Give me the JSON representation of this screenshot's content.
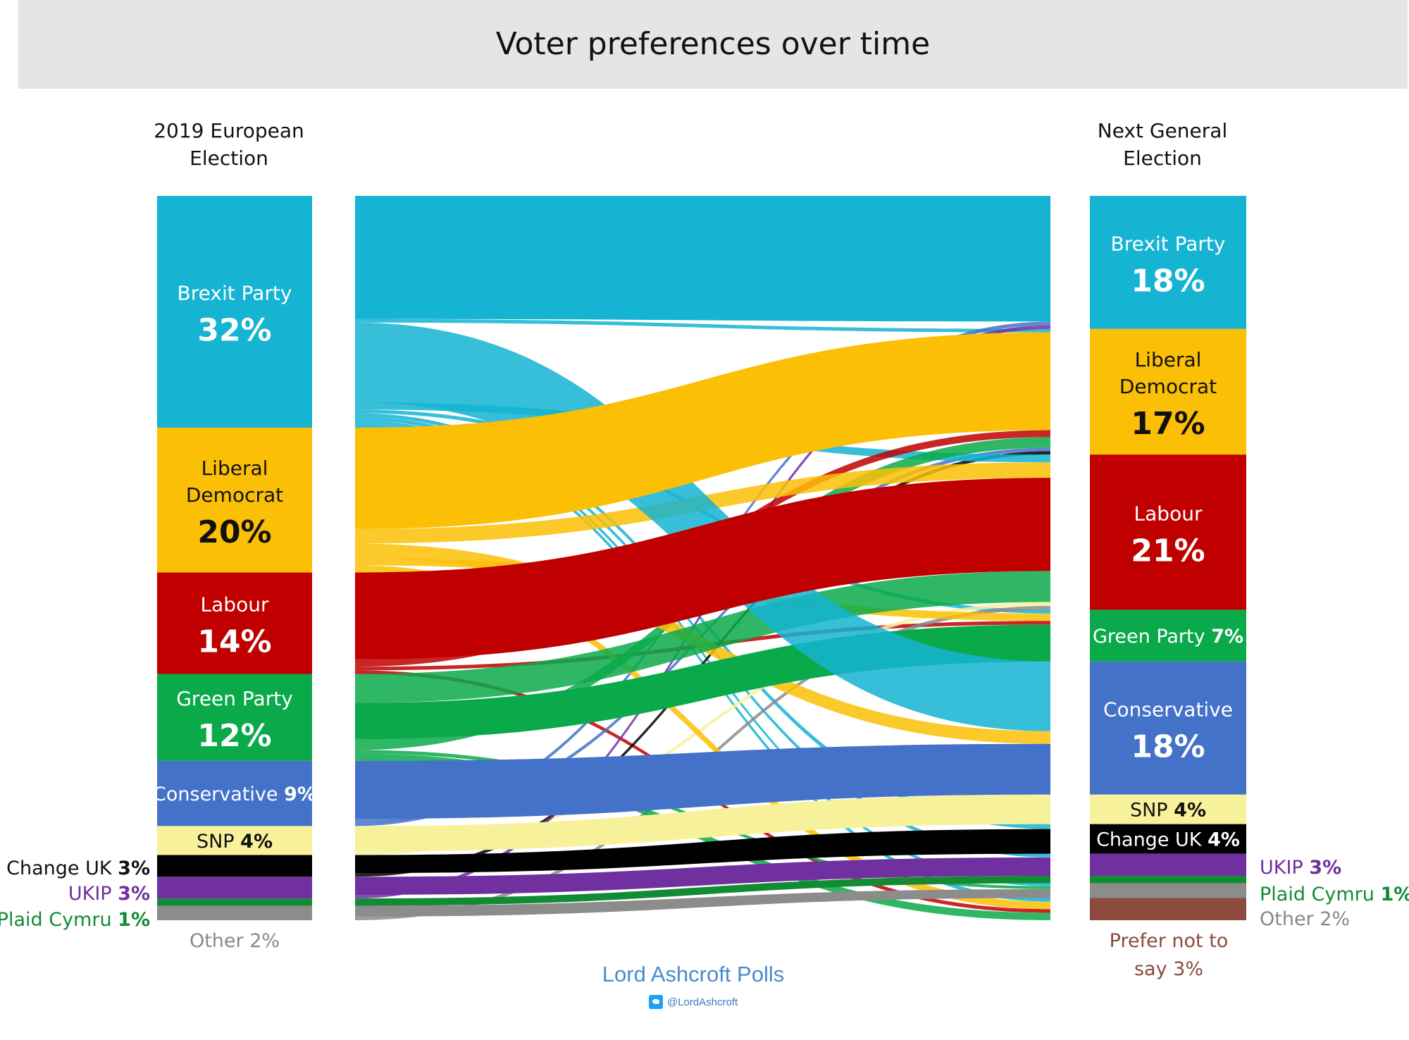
{
  "title": "Voter preferences over time",
  "colors": {
    "Brexit Party": "#14b4d2",
    "Liberal Democrat": "#fbbf06",
    "Labour": "#c00000",
    "Green Party": "#0aaa4a",
    "Conservative": "#4472c8",
    "SNP": "#f8f19c",
    "Change UK": "#000000",
    "UKIP": "#7030a0",
    "Plaid Cymru": "#128b34",
    "Other": "#8c8c8c",
    "Prefer not to say": "#8b4a3c"
  },
  "source": {
    "name": "Lord Ashcroft Polls",
    "handle": "@LordAshcroft",
    "icon": "twitter-icon"
  },
  "chart_data": {
    "type": "sankey",
    "title": "Voter preferences over time",
    "left_label": "2019 European Election",
    "right_label": "Next General Election",
    "left": [
      {
        "name": "Brexit Party",
        "name_lines": [
          "Brexit Party"
        ],
        "value_label": "32%",
        "value": 32
      },
      {
        "name": "Liberal Democrat",
        "name_lines": [
          "Liberal",
          "Democrat"
        ],
        "value_label": "20%",
        "value": 20
      },
      {
        "name": "Labour",
        "name_lines": [
          "Labour"
        ],
        "value_label": "14%",
        "value": 14
      },
      {
        "name": "Green Party",
        "name_lines": [
          "Green Party"
        ],
        "value_label": "12%",
        "value": 12
      },
      {
        "name": "Conservative",
        "name_lines": [
          "Conservative"
        ],
        "value_label": "9%",
        "value": 9
      },
      {
        "name": "SNP",
        "name_lines": [
          "SNP"
        ],
        "value_label": "4%",
        "value": 4
      },
      {
        "name": "Change UK",
        "name_lines": [
          "Change UK"
        ],
        "value_label": "3%",
        "value": 3
      },
      {
        "name": "UKIP",
        "name_lines": [
          "UKIP"
        ],
        "value_label": "3%",
        "value": 3
      },
      {
        "name": "Plaid Cymru",
        "name_lines": [
          "Plaid Cymru"
        ],
        "value_label": "1%",
        "value": 1
      },
      {
        "name": "Other",
        "name_lines": [
          "Other"
        ],
        "value_label": "2%",
        "value": 2
      }
    ],
    "right": [
      {
        "name": "Brexit Party",
        "name_lines": [
          "Brexit Party"
        ],
        "value_label": "18%",
        "value": 18
      },
      {
        "name": "Liberal Democrat",
        "name_lines": [
          "Liberal",
          "Democrat"
        ],
        "value_label": "17%",
        "value": 17
      },
      {
        "name": "Labour",
        "name_lines": [
          "Labour"
        ],
        "value_label": "21%",
        "value": 21
      },
      {
        "name": "Green Party",
        "name_lines": [
          "Green Party"
        ],
        "value_label": "7%",
        "value": 7
      },
      {
        "name": "Conservative",
        "name_lines": [
          "Conservative"
        ],
        "value_label": "18%",
        "value": 18
      },
      {
        "name": "SNP",
        "name_lines": [
          "SNP"
        ],
        "value_label": "4%",
        "value": 4
      },
      {
        "name": "Change UK",
        "name_lines": [
          "Change UK"
        ],
        "value_label": "4%",
        "value": 4
      },
      {
        "name": "UKIP",
        "name_lines": [
          "UKIP"
        ],
        "value_label": "3%",
        "value": 3
      },
      {
        "name": "Plaid Cymru",
        "name_lines": [
          "Plaid Cymru"
        ],
        "value_label": "1%",
        "value": 1
      },
      {
        "name": "Other",
        "name_lines": [
          "Other"
        ],
        "value_label": "2%",
        "value": 2
      },
      {
        "name": "Prefer not to say",
        "name_lines": [
          "Prefer not to",
          "say"
        ],
        "value_label": "3%",
        "value": 3
      }
    ],
    "flows": [
      {
        "from": "Brexit Party",
        "to": "Brexit Party",
        "value": 17
      },
      {
        "from": "Brexit Party",
        "to": "Liberal Democrat",
        "value": 0.5
      },
      {
        "from": "Brexit Party",
        "to": "Conservative",
        "value": 11
      },
      {
        "from": "Brexit Party",
        "to": "Labour",
        "value": 1
      },
      {
        "from": "Brexit Party",
        "to": "Green Party",
        "value": 0.5
      },
      {
        "from": "Brexit Party",
        "to": "Change UK",
        "value": 0.5
      },
      {
        "from": "Brexit Party",
        "to": "UKIP",
        "value": 0.5
      },
      {
        "from": "Brexit Party",
        "to": "Other",
        "value": 0.5
      },
      {
        "from": "Brexit Party",
        "to": "Prefer not to say",
        "value": 0.5
      },
      {
        "from": "Liberal Democrat",
        "to": "Liberal Democrat",
        "value": 14
      },
      {
        "from": "Liberal Democrat",
        "to": "Labour",
        "value": 2
      },
      {
        "from": "Liberal Democrat",
        "to": "Conservative",
        "value": 2
      },
      {
        "from": "Liberal Democrat",
        "to": "Green Party",
        "value": 1
      },
      {
        "from": "Liberal Democrat",
        "to": "Prefer not to say",
        "value": 1
      },
      {
        "from": "Labour",
        "to": "Labour",
        "value": 12
      },
      {
        "from": "Labour",
        "to": "Liberal Democrat",
        "value": 1
      },
      {
        "from": "Labour",
        "to": "Green Party",
        "value": 0.5
      },
      {
        "from": "Labour",
        "to": "Prefer not to say",
        "value": 0.5
      },
      {
        "from": "Green Party",
        "to": "Labour",
        "value": 4
      },
      {
        "from": "Green Party",
        "to": "Green Party",
        "value": 5
      },
      {
        "from": "Green Party",
        "to": "Liberal Democrat",
        "value": 1.5
      },
      {
        "from": "Green Party",
        "to": "Other",
        "value": 0.5
      },
      {
        "from": "Green Party",
        "to": "Prefer not to say",
        "value": 1
      },
      {
        "from": "Conservative",
        "to": "Conservative",
        "value": 8
      },
      {
        "from": "Conservative",
        "to": "Liberal Democrat",
        "value": 0.5
      },
      {
        "from": "Conservative",
        "to": "Brexit Party",
        "value": 0.5
      },
      {
        "from": "SNP",
        "to": "SNP",
        "value": 3.5
      },
      {
        "from": "SNP",
        "to": "Labour",
        "value": 0.5
      },
      {
        "from": "Change UK",
        "to": "Change UK",
        "value": 2.5
      },
      {
        "from": "Change UK",
        "to": "Liberal Democrat",
        "value": 0.5
      },
      {
        "from": "UKIP",
        "to": "UKIP",
        "value": 2.5
      },
      {
        "from": "UKIP",
        "to": "Brexit Party",
        "value": 0.5
      },
      {
        "from": "Plaid Cymru",
        "to": "Plaid Cymru",
        "value": 1
      },
      {
        "from": "Other",
        "to": "Other",
        "value": 1.5
      },
      {
        "from": "Other",
        "to": "Labour",
        "value": 0.5
      }
    ]
  }
}
